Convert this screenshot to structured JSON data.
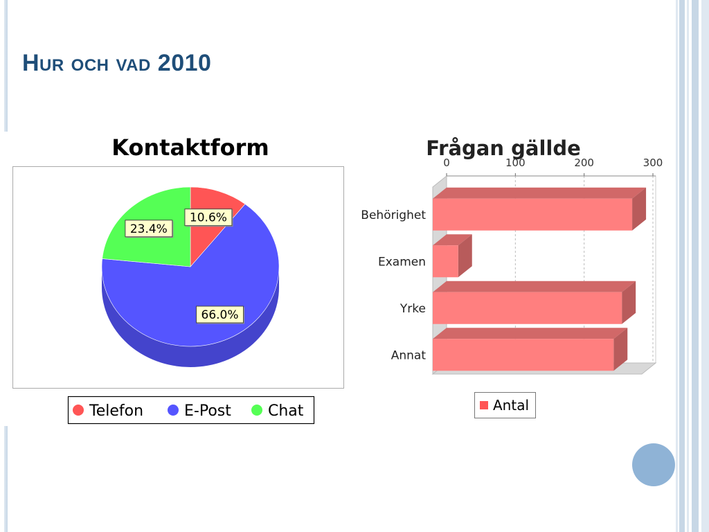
{
  "slide": {
    "title": "Hur och vad 2010"
  },
  "colors": {
    "telefon": "#ff5555",
    "epost": "#5555ff",
    "chat": "#55ff55",
    "bar": "#ff7f7f",
    "title": "#1f4e79",
    "accent": "#8fb3d6"
  },
  "chart_data": [
    {
      "type": "pie",
      "title": "Kontaktform",
      "labels": [
        "Telefon",
        "E-Post",
        "Chat"
      ],
      "values": [
        10.6,
        66.0,
        23.4
      ],
      "value_labels": [
        "10.6%",
        "66.0%",
        "23.4%"
      ],
      "colors": [
        "#ff5555",
        "#5555ff",
        "#55ff55"
      ],
      "legend": "bottom"
    },
    {
      "type": "bar",
      "orientation": "horizontal",
      "title": "Frågan gällde",
      "categories": [
        "Behörighet",
        "Examen",
        "Yrke",
        "Annat"
      ],
      "series": [
        {
          "name": "Antal",
          "values": [
            290,
            37,
            275,
            263
          ]
        }
      ],
      "xlim": [
        0,
        300
      ],
      "ticks": [
        0,
        100,
        200,
        300
      ],
      "tick_labels": [
        "0",
        "100",
        "200",
        "300"
      ],
      "grid": true,
      "legend": "bottom"
    }
  ]
}
